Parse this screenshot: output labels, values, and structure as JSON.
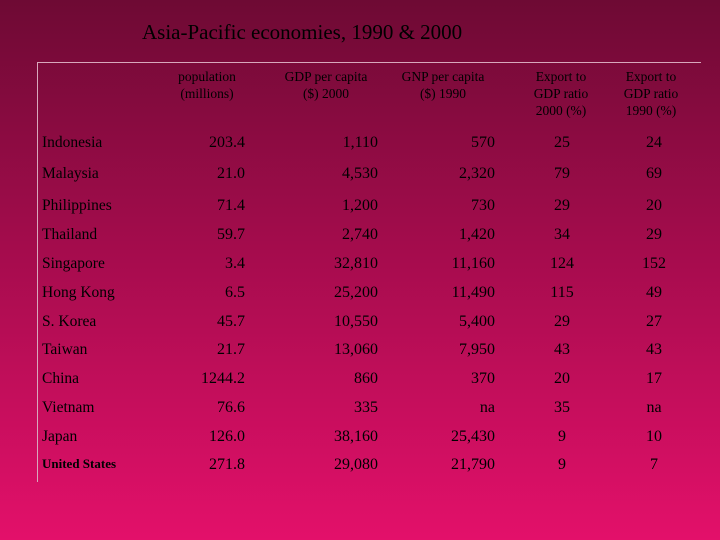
{
  "title": "Asia-Pacific economies, 1990 & 2000",
  "table": {
    "headers": [
      "population (millions)",
      "GDP per capita ($) 2000",
      "GNP per capita ($) 1990",
      "Export to GDP ratio 2000 (%)",
      "Export to GDP ratio 1990 (%)"
    ],
    "rows": [
      [
        "Indonesia",
        "203.4",
        "1,110",
        "570",
        "25",
        "24"
      ],
      [
        "Malaysia",
        "21.0",
        "4,530",
        "2,320",
        "79",
        "69"
      ],
      [
        "Philippines",
        "71.4",
        "1,200",
        "730",
        "29",
        "20"
      ],
      [
        "Thailand",
        "59.7",
        "2,740",
        "1,420",
        "34",
        "29"
      ],
      [
        "Singapore",
        "3.4",
        "32,810",
        "11,160",
        "124",
        "152"
      ],
      [
        "Hong Kong",
        "6.5",
        "25,200",
        "11,490",
        "115",
        "49"
      ],
      [
        "S. Korea",
        "45.7",
        "10,550",
        "5,400",
        "29",
        "27"
      ],
      [
        "Taiwan",
        "21.7",
        "13,060",
        "7,950",
        "43",
        "43"
      ],
      [
        "China",
        "1244.2",
        "860",
        "370",
        "20",
        "17"
      ],
      [
        "Vietnam",
        "76.6",
        "335",
        "na",
        "35",
        "na"
      ],
      [
        "Japan",
        "126.0",
        "38,160",
        "25,430",
        "9",
        "10"
      ],
      [
        "United States",
        "271.8",
        "29,080",
        "21,790",
        "9",
        "7"
      ]
    ]
  }
}
